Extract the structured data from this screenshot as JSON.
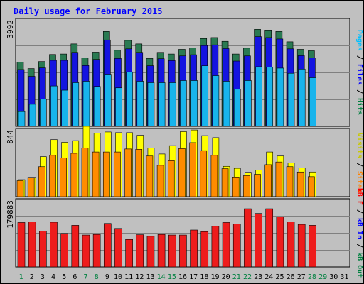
{
  "chart_data": {
    "type": "bar",
    "title": "Daily usage for February 2015",
    "x": [
      1,
      2,
      3,
      4,
      5,
      6,
      7,
      8,
      9,
      10,
      11,
      12,
      13,
      14,
      15,
      16,
      17,
      18,
      19,
      20,
      21,
      22,
      23,
      24,
      25,
      26,
      27,
      28,
      29,
      30,
      31
    ],
    "weekend_days": [
      1,
      7,
      8,
      14,
      15,
      21,
      22,
      28,
      29
    ],
    "panels": [
      {
        "name": "hits-files-pages",
        "ymax_label": "3992",
        "ymax": 3992,
        "ylabel_parts": [
          {
            "text": "Pages",
            "color": "#00c0ff"
          },
          {
            "text": " / ",
            "color": "#000000"
          },
          {
            "text": "Files",
            "color": "#0000ff"
          },
          {
            "text": " / ",
            "color": "#000000"
          },
          {
            "text": "Hits",
            "color": "#008040"
          }
        ],
        "series": [
          {
            "name": "Hits",
            "color": "#2a7a52",
            "values": [
              2730,
              2460,
              2760,
              3060,
              3080,
              3510,
              2910,
              3160,
              4040,
              3240,
              3660,
              3510,
              2890,
              3150,
              3080,
              3280,
              3340,
              3740,
              3780,
              3620,
              3080,
              3330,
              4130,
              4100,
              4040,
              3600,
              3280,
              3220,
              0,
              0,
              0
            ]
          },
          {
            "name": "Files",
            "color": "#1414e0",
            "values": [
              2420,
              2130,
              2490,
              2810,
              2810,
              3150,
              2590,
              2850,
              3680,
              2890,
              3300,
              3150,
              2580,
              2880,
              2800,
              3000,
              3050,
              3440,
              3470,
              3310,
              2780,
              3000,
              3820,
              3780,
              3720,
              3300,
              3010,
              2910,
              0,
              0,
              0
            ]
          },
          {
            "name": "Pages",
            "color": "#18b4ec",
            "values": [
              630,
              940,
              1160,
              1720,
              1540,
              1860,
              1920,
              1700,
              2220,
              1640,
              2320,
              1920,
              1860,
              1860,
              1860,
              1950,
              1950,
              2580,
              2160,
              1920,
              1580,
              1950,
              2540,
              2520,
              2480,
              2260,
              2440,
              2070,
              0,
              0,
              0
            ]
          }
        ]
      },
      {
        "name": "visits-sites",
        "ymax_label": "844",
        "ymax": 844,
        "ylabel_parts": [
          {
            "text": "Visits",
            "color": "#c8c800"
          },
          {
            "text": " / ",
            "color": "#000000"
          },
          {
            "text": "Sites",
            "color": "#ff8000"
          }
        ],
        "series": [
          {
            "name": "Visits",
            "color": "#ffff00",
            "values": [
              255,
              290,
              600,
              855,
              815,
              840,
              1055,
              955,
              970,
              960,
              960,
              920,
              730,
              640,
              765,
              975,
              1000,
              915,
              885,
              455,
              425,
              365,
              400,
              670,
              610,
              505,
              430,
              370,
              0,
              0,
              0
            ]
          },
          {
            "name": "Sites",
            "color": "#ff8c00",
            "values": [
              240,
              290,
              450,
              620,
              580,
              650,
              730,
              670,
              670,
              670,
              715,
              710,
              610,
              470,
              540,
              720,
              810,
              690,
              620,
              420,
              295,
              315,
              335,
              480,
              520,
              450,
              370,
              300,
              0,
              0,
              0
            ]
          }
        ]
      },
      {
        "name": "kbytes",
        "ymax_label": "179883",
        "ymax": 179883,
        "ylabel_parts": [
          {
            "text": "kB F",
            "color": "#ff0000"
          },
          {
            "text": " / ",
            "color": "#000000"
          },
          {
            "text": "kB In",
            "color": "#0000ff"
          },
          {
            "text": " / ",
            "color": "#000000"
          },
          {
            "text": "kB Out",
            "color": "#008040"
          }
        ],
        "series": [
          {
            "name": "kB F",
            "color": "#ee1c1c",
            "values": [
              142000,
              144000,
              115000,
              143000,
              107000,
              133000,
              102000,
              104000,
              139000,
              123000,
              88000,
              103000,
              98000,
              104000,
              102000,
              102000,
              118000,
              113000,
              130000,
              142000,
              137000,
              186000,
              171000,
              186000,
              160000,
              144000,
              136000,
              133000,
              0,
              0,
              0
            ]
          }
        ]
      }
    ]
  }
}
